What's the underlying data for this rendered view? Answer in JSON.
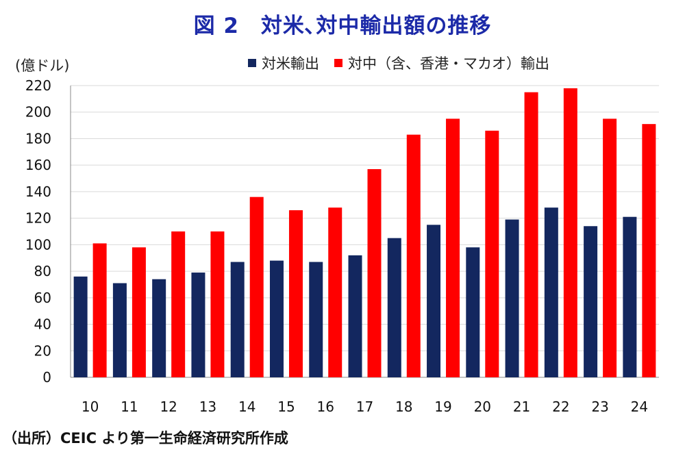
{
  "title": "図 2　対米､対中輸出額の推移",
  "unit_label": "(億ドル)",
  "source_note": "（出所）CEIC より第一生命経済研究所作成",
  "colors": {
    "us": "#13275f",
    "china": "#ff0000",
    "title": "#1c2aa8"
  },
  "chart_data": {
    "type": "bar",
    "categories": [
      "10",
      "11",
      "12",
      "13",
      "14",
      "15",
      "16",
      "17",
      "18",
      "19",
      "20",
      "21",
      "22",
      "23",
      "24"
    ],
    "series": [
      {
        "name": "対米輸出",
        "values": [
          76,
          71,
          74,
          79,
          87,
          88,
          87,
          92,
          105,
          115,
          98,
          119,
          128,
          114,
          121
        ]
      },
      {
        "name": "対中（含、香港・マカオ）輸出",
        "values": [
          101,
          98,
          110,
          110,
          136,
          126,
          128,
          157,
          183,
          195,
          186,
          215,
          218,
          195,
          191
        ]
      }
    ],
    "ylim": [
      0,
      220
    ],
    "yticks": [
      0,
      20,
      40,
      60,
      80,
      100,
      120,
      140,
      160,
      180,
      200,
      220
    ],
    "grid": true,
    "legend": "top"
  }
}
